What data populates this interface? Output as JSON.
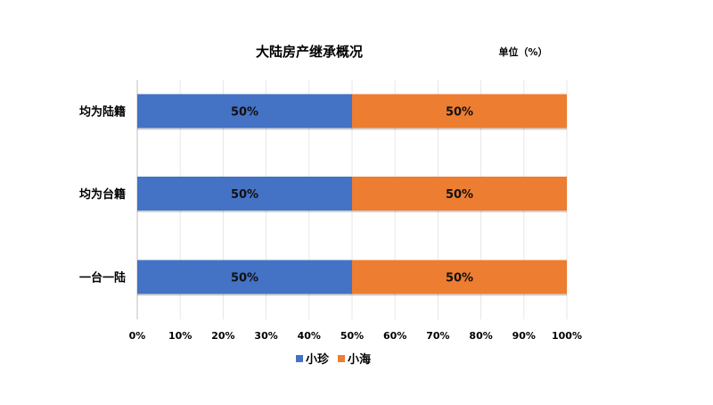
{
  "chart_data": {
    "type": "bar",
    "orientation": "horizontal",
    "stacked": true,
    "title": "大陆房产继承概况",
    "unit_note": "单位（%）",
    "categories": [
      "均为陆籍",
      "均为台籍",
      "一台一陆"
    ],
    "series": [
      {
        "name": "小珍",
        "values": [
          50,
          50,
          50
        ],
        "labels": [
          "50%",
          "50%",
          "50%"
        ],
        "color": "#4472C4"
      },
      {
        "name": "小海",
        "values": [
          50,
          50,
          50
        ],
        "labels": [
          "50%",
          "50%",
          "50%"
        ],
        "color": "#ED7D31"
      }
    ],
    "xlim": [
      0,
      100
    ],
    "xticks": [
      0,
      10,
      20,
      30,
      40,
      50,
      60,
      70,
      80,
      90,
      100
    ],
    "xtick_labels": [
      "0%",
      "10%",
      "20%",
      "30%",
      "40%",
      "50%",
      "60%",
      "70%",
      "80%",
      "90%",
      "100%"
    ],
    "grid": "vertical",
    "legend_position": "bottom"
  }
}
